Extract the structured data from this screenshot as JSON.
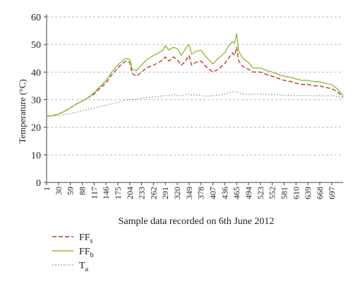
{
  "chart_data": {
    "type": "line",
    "title": "",
    "xlabel": "Sample data recorded on 6th June 2012",
    "ylabel": "Temperature (°C)",
    "ylim": [
      0,
      60
    ],
    "yticks": [
      0,
      10,
      20,
      30,
      40,
      50,
      60
    ],
    "xlim": [
      1,
      725
    ],
    "xticks": [
      1,
      30,
      59,
      88,
      117,
      146,
      175,
      204,
      233,
      262,
      291,
      320,
      349,
      378,
      407,
      436,
      465,
      494,
      523,
      552,
      581,
      610,
      639,
      668,
      697
    ],
    "grid": "horizontal dashed",
    "legend_position": "bottom-left",
    "x": [
      1,
      15,
      30,
      45,
      59,
      75,
      88,
      100,
      117,
      130,
      146,
      160,
      175,
      185,
      195,
      204,
      210,
      220,
      233,
      245,
      262,
      275,
      285,
      291,
      300,
      310,
      320,
      330,
      340,
      349,
      355,
      365,
      378,
      390,
      407,
      420,
      436,
      445,
      455,
      460,
      465,
      470,
      480,
      494,
      505,
      523,
      540,
      552,
      570,
      581,
      600,
      610,
      625,
      639,
      655,
      668,
      680,
      697,
      710,
      725
    ],
    "series": [
      {
        "name": "FF",
        "subscript": "s",
        "color": "#c0392b",
        "style": "dashed",
        "values": [
          24,
          24.2,
          24.8,
          25.8,
          27,
          28.5,
          29.5,
          30.5,
          32,
          34,
          36,
          39,
          41.5,
          43,
          44,
          43.5,
          39.5,
          38.5,
          40,
          41.5,
          42.5,
          43.5,
          44.5,
          45.5,
          44,
          45.5,
          44.5,
          42.5,
          44,
          46,
          42.5,
          43.5,
          44,
          42,
          40,
          41,
          43,
          45,
          47,
          46,
          49,
          44,
          42,
          41,
          40,
          40,
          39,
          38.5,
          37.5,
          37,
          36.5,
          36,
          35.5,
          35.5,
          35,
          35,
          34.5,
          34,
          33,
          31
        ]
      },
      {
        "name": "FF",
        "subscript": "b",
        "color": "#8fbc3f",
        "style": "solid",
        "values": [
          24,
          24.2,
          24.8,
          25.8,
          27,
          28.5,
          29.5,
          30.5,
          32.5,
          34.5,
          37,
          40,
          42.5,
          44,
          45,
          44.5,
          41,
          40.5,
          42.5,
          44.5,
          46,
          47,
          48,
          49.5,
          48,
          49,
          48.5,
          46,
          48.5,
          50,
          46.5,
          47.5,
          48,
          45.5,
          43,
          45,
          47,
          49.5,
          51,
          50.5,
          54,
          47.5,
          45,
          43.5,
          41.5,
          41.5,
          40.5,
          40,
          39,
          38.5,
          38,
          37.5,
          37,
          37,
          36.5,
          36.5,
          36,
          35.5,
          34,
          31.5
        ]
      },
      {
        "name": "T",
        "subscript": "a",
        "color": "#999999",
        "style": "dotted",
        "values": [
          24,
          24.1,
          24.3,
          24.6,
          25,
          25.5,
          26,
          26.5,
          27,
          27.5,
          28,
          28.5,
          29,
          29.5,
          30,
          30,
          30,
          30.2,
          30.5,
          30.8,
          31,
          31.2,
          31.4,
          31.5,
          31.5,
          31.8,
          31.6,
          31.4,
          31.8,
          32,
          31.6,
          31.8,
          31.5,
          31.2,
          31.5,
          31.6,
          32,
          32.5,
          32.8,
          33,
          33,
          32.5,
          32,
          31.8,
          32,
          32,
          32,
          31.8,
          31.8,
          31.5,
          31.5,
          31.5,
          31.5,
          31.5,
          31.4,
          31.5,
          31.4,
          31.5,
          31.2,
          30.5
        ]
      }
    ]
  }
}
